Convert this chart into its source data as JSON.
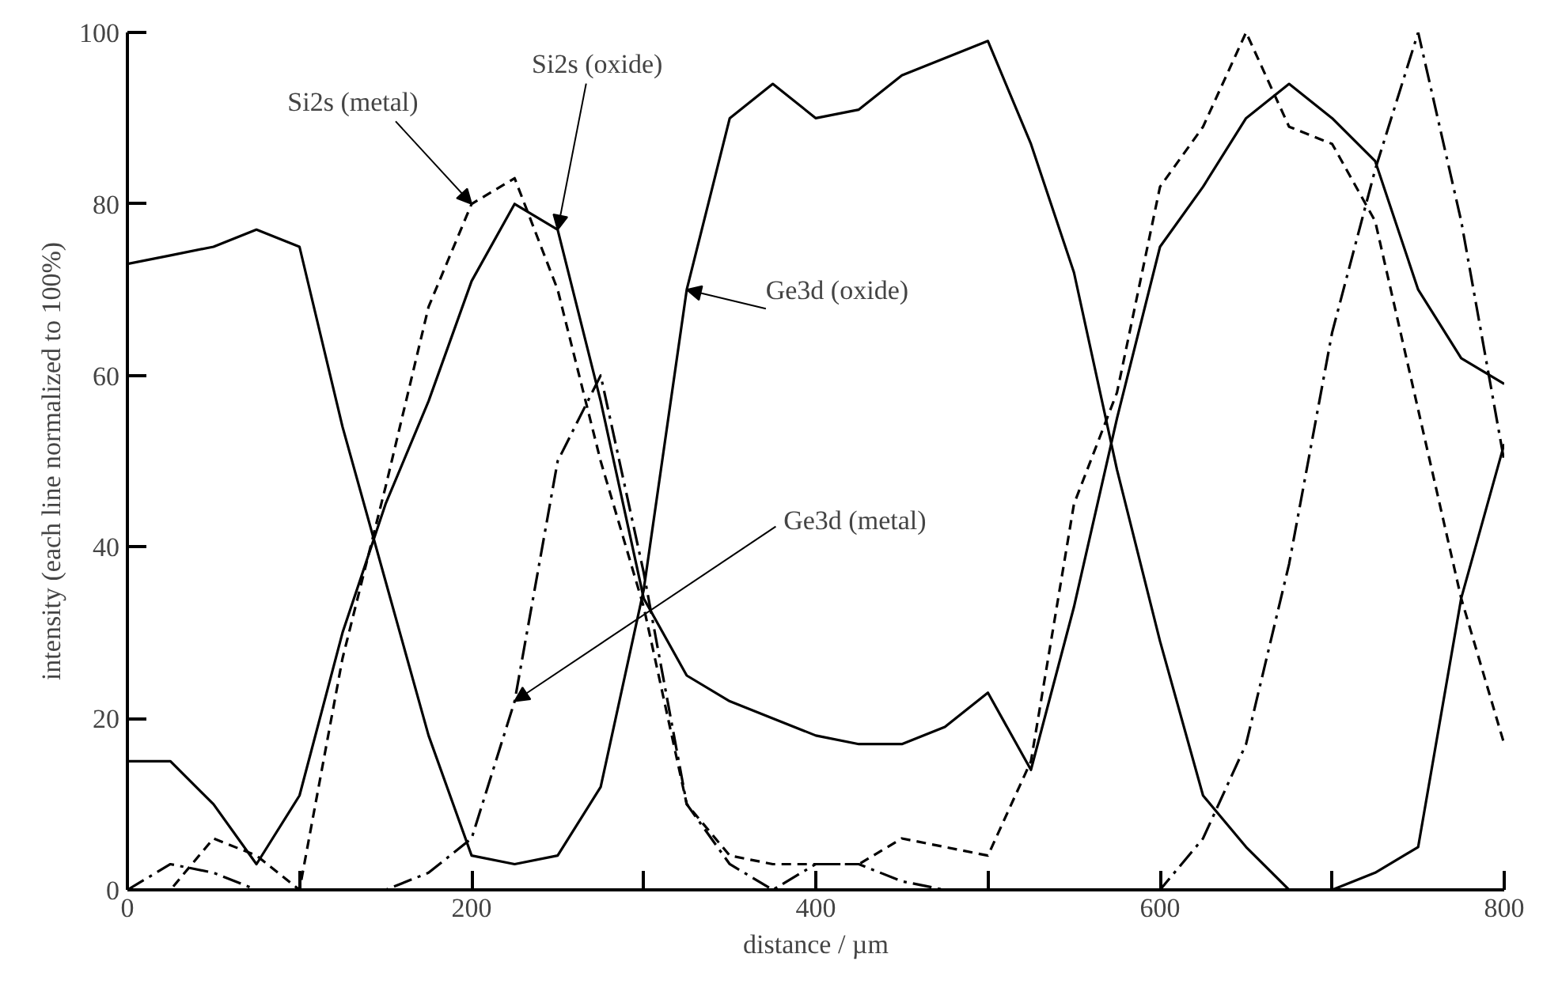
{
  "chart_data": {
    "type": "line",
    "xlabel": "distance / µm",
    "ylabel": "intensity (each line normalized to 100%)",
    "x": [
      0,
      25,
      50,
      75,
      100,
      125,
      150,
      175,
      200,
      225,
      250,
      275,
      300,
      325,
      350,
      375,
      400,
      425,
      450,
      475,
      500,
      525,
      550,
      575,
      600,
      625,
      650,
      675,
      700,
      725,
      750,
      775,
      800
    ],
    "series": [
      {
        "color": "#000000",
        "line_style": "solid",
        "values": [
          73,
          74,
          75,
          77,
          75,
          54,
          36,
          18,
          4,
          3,
          4,
          12,
          35,
          70,
          90,
          94,
          90,
          91,
          95,
          97,
          99,
          87,
          72,
          49,
          29,
          11,
          5,
          0,
          0,
          2,
          5,
          34,
          52
        ]
      },
      {
        "color": "#000000",
        "line_style": "solid",
        "values": [
          15,
          15,
          10,
          3,
          11,
          30,
          45,
          57,
          71,
          80,
          77,
          57,
          34,
          25,
          22,
          20,
          18,
          17,
          17,
          19,
          23,
          14,
          33,
          55,
          75,
          82,
          90,
          94,
          90,
          85,
          70,
          62,
          59
        ]
      },
      {
        "color": "#000000",
        "line_style": "dashed",
        "values": [
          0,
          0,
          6,
          4,
          0,
          27,
          47,
          68,
          80,
          83,
          70,
          50,
          33,
          10,
          4,
          3,
          3,
          3,
          6,
          5,
          4,
          15,
          45,
          58,
          82,
          89,
          100,
          89,
          87,
          78,
          56,
          34,
          17
        ]
      },
      {
        "color": "#000000",
        "line_style": "dashdot",
        "values": [
          0,
          3,
          2,
          0,
          0,
          0,
          0,
          2,
          6,
          22,
          50,
          60,
          37,
          10,
          3,
          0,
          3,
          3,
          1,
          0,
          0,
          0,
          0,
          0,
          0,
          6,
          17,
          38,
          65,
          84,
          100,
          78,
          50
        ]
      }
    ],
    "xlim": [
      0,
      800
    ],
    "ylim": [
      0,
      100
    ],
    "xticks": [
      0,
      {
        "value": 100,
        "label": null
      },
      200,
      {
        "value": 300,
        "label": null
      },
      400,
      {
        "value": 500,
        "label": null
      },
      600,
      {
        "value": 700,
        "label": null
      },
      800
    ],
    "yticks": [
      0,
      20,
      40,
      60,
      80,
      100
    ],
    "annotations": [
      {
        "text": "Si2s (metal)",
        "x": 200,
        "y": 80
      },
      {
        "text": "Si2s (oxide)",
        "x": 250,
        "y": 77
      },
      {
        "text": "Ge3d (oxide)",
        "x": 325,
        "y": 70
      },
      {
        "text": "Ge3d (metal)",
        "x": 225,
        "y": 22
      }
    ]
  }
}
